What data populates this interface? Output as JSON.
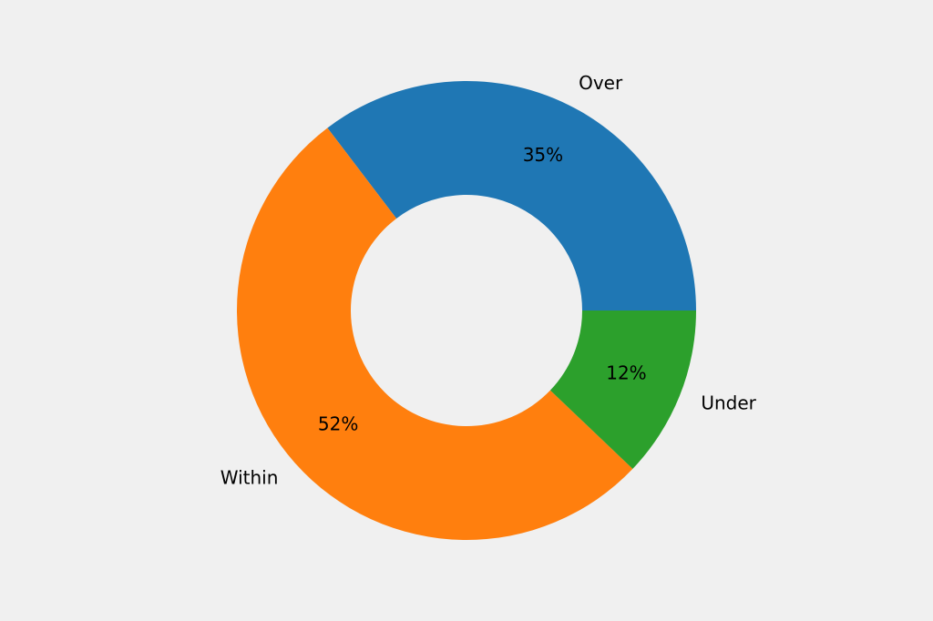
{
  "chart_data": {
    "type": "donut",
    "categories": [
      "Over",
      "Within",
      "Under"
    ],
    "values": [
      35,
      52,
      12
    ],
    "value_labels": [
      "35%",
      "52%",
      "12%"
    ],
    "colors": [
      "#1f77b4",
      "#ff7f0e",
      "#2ca02c"
    ]
  }
}
